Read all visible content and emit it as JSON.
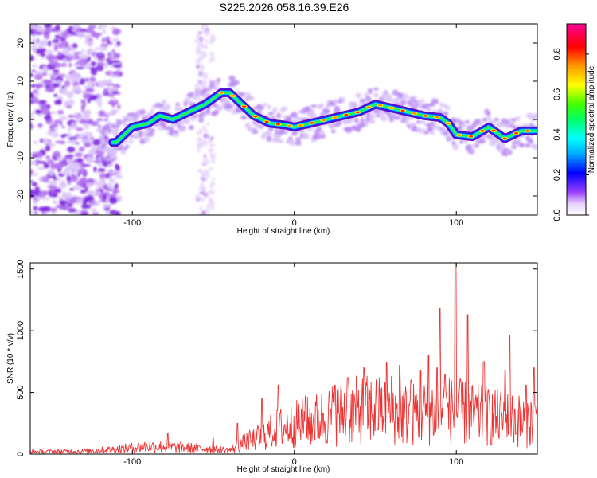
{
  "title": "S225.2026.058.16.39.E26",
  "chart_data": [
    {
      "type": "heatmap",
      "xlabel": "Height of straight line (km)",
      "ylabel": "Frequency (Hz)",
      "xlim": [
        -163,
        150
      ],
      "ylim": [
        -25,
        25
      ],
      "xticks": [
        -100,
        0,
        100
      ],
      "yticks": [
        -20,
        -10,
        0,
        10,
        20
      ],
      "colorbar": {
        "label": "Normalized spectral amplitude",
        "range": [
          0,
          0.95
        ],
        "ticks": [
          0.0,
          0.2,
          0.4,
          0.6,
          0.8
        ],
        "tick_labels": [
          "0.0",
          "0.2",
          "0.4",
          "0.6",
          "0.8"
        ]
      },
      "ridge": {
        "x": [
          -110,
          -100,
          -90,
          -83,
          -75,
          -65,
          -55,
          -45,
          -40,
          -35,
          -25,
          -15,
          -5,
          0,
          10,
          20,
          30,
          40,
          50,
          60,
          70,
          80,
          90,
          95,
          100,
          110,
          120,
          130,
          140,
          148
        ],
        "y": [
          -6,
          -2,
          -1,
          1,
          0,
          2,
          4,
          7,
          7,
          5,
          1,
          -1,
          -1.5,
          -2,
          -1,
          0,
          1,
          2,
          4,
          3,
          2,
          1,
          0.5,
          -1,
          -4,
          -4.5,
          -2,
          -5,
          -3,
          -3
        ]
      }
    },
    {
      "type": "line",
      "xlabel": "Height of straight line (km)",
      "ylabel": "SNR (10 * v/v)",
      "xlim": [
        -163,
        150
      ],
      "ylim": [
        0,
        1550
      ],
      "xticks": [
        -100,
        0,
        100
      ],
      "yticks": [
        0,
        500,
        1000,
        1500
      ],
      "series": [
        {
          "name": "SNR",
          "color": "#ee3333",
          "envelope_x": [
            -163,
            -130,
            -110,
            -90,
            -70,
            -50,
            -40,
            -30,
            -20,
            -10,
            0,
            10,
            20,
            30,
            40,
            50,
            60,
            70,
            80,
            90,
            100,
            110,
            120,
            130,
            140,
            150
          ],
          "envelope_y": [
            25,
            30,
            50,
            80,
            70,
            50,
            40,
            120,
            180,
            260,
            300,
            330,
            380,
            420,
            440,
            450,
            420,
            400,
            420,
            450,
            430,
            400,
            380,
            360,
            340,
            330
          ],
          "peaks_x": [
            -78,
            -50,
            -35,
            -20,
            -10,
            7,
            25,
            33,
            43,
            57,
            60,
            65,
            72,
            78,
            83,
            88,
            90,
            93,
            99.5,
            107,
            117,
            130,
            133,
            143,
            148
          ],
          "peaks_y": [
            170,
            130,
            250,
            450,
            560,
            470,
            560,
            620,
            700,
            740,
            630,
            720,
            600,
            680,
            800,
            700,
            1180,
            650,
            1550,
            1130,
            750,
            680,
            960,
            560,
            700
          ]
        }
      ]
    }
  ]
}
